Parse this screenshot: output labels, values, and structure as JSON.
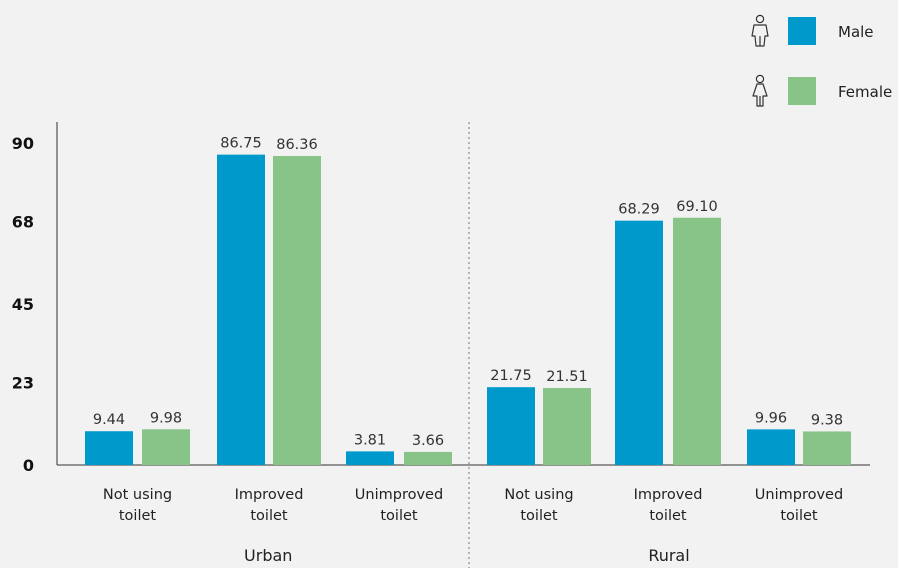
{
  "chart_data": {
    "type": "bar",
    "groups": [
      {
        "name": "Urban",
        "categories": [
          "Not using toilet",
          "Improved toilet",
          "Unimproved toilet"
        ]
      },
      {
        "name": "Rural",
        "categories": [
          "Not using toilet",
          "Improved toilet",
          "Unimproved toilet"
        ]
      }
    ],
    "category_lines": [
      [
        "Not using",
        "toilet"
      ],
      [
        "Improved",
        "toilet"
      ],
      [
        "Unimproved",
        "toilet"
      ]
    ],
    "series": [
      {
        "name": "Male",
        "color": "#0099cc",
        "icon": "male-person-icon",
        "values": [
          9.44,
          86.75,
          3.81,
          21.75,
          68.29,
          9.96
        ],
        "labels": [
          "9.44",
          "86.75",
          "3.81",
          "21.75",
          "68.29",
          "9.96"
        ]
      },
      {
        "name": "Female",
        "color": "#88c488",
        "icon": "female-person-icon",
        "values": [
          9.98,
          86.36,
          3.66,
          21.51,
          69.1,
          9.38
        ],
        "labels": [
          "9.98",
          "86.36",
          "3.66",
          "21.51",
          "69.10",
          "9.38"
        ]
      }
    ],
    "yticks": [
      0,
      23,
      45,
      68,
      90
    ],
    "ylim": [
      0,
      90
    ],
    "legend_position": "top-right",
    "grid": false
  }
}
